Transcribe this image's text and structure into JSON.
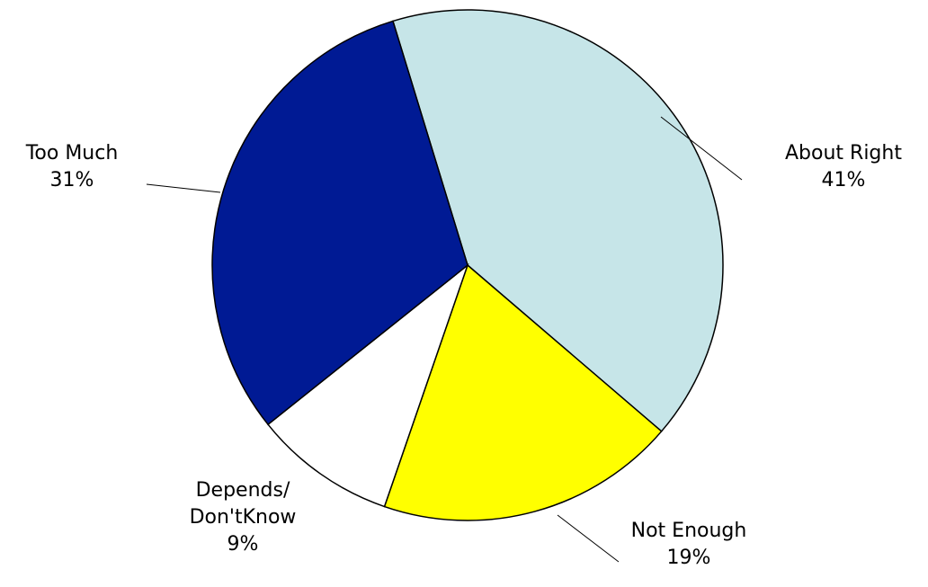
{
  "chart_data": {
    "type": "pie",
    "slices": [
      {
        "label": "About Right",
        "label_lines": [
          "About Right"
        ],
        "value": 41,
        "value_label": "41%",
        "color": "#C6E5E8"
      },
      {
        "label": "Not Enough",
        "label_lines": [
          "Not Enough"
        ],
        "value": 19,
        "value_label": "19%",
        "color": "#FFFF00"
      },
      {
        "label": "Depends/ Don'tKnow",
        "label_lines": [
          "Depends/",
          "Don'tKnow"
        ],
        "value": 9,
        "value_label": "9%",
        "color": "#FFFFFF"
      },
      {
        "label": "Too Much",
        "label_lines": [
          "Too Much"
        ],
        "value": 31,
        "value_label": "31%",
        "color": "#001A94"
      }
    ],
    "start_angle_deg": -17,
    "direction": "clockwise",
    "legend": "none",
    "data_labels": "outside with leader lines"
  }
}
